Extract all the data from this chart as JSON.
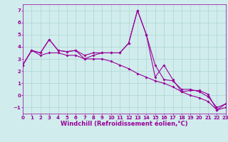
{
  "x": [
    0,
    1,
    2,
    3,
    4,
    5,
    6,
    7,
    8,
    9,
    10,
    11,
    12,
    13,
    14,
    15,
    16,
    17,
    18,
    19,
    20,
    21,
    22,
    23
  ],
  "y_line": [
    2.5,
    3.7,
    3.5,
    4.6,
    3.7,
    3.6,
    3.7,
    3.0,
    3.3,
    3.5,
    3.5,
    3.5,
    4.3,
    7.0,
    5.0,
    1.5,
    2.5,
    1.3,
    0.3,
    0.4,
    0.4,
    0.1,
    -1.2,
    -0.7
  ],
  "y_upper": [
    2.5,
    3.7,
    3.5,
    4.6,
    3.7,
    3.6,
    3.7,
    3.3,
    3.5,
    3.5,
    3.5,
    3.5,
    4.3,
    7.0,
    5.0,
    2.5,
    1.3,
    1.2,
    0.5,
    0.5,
    0.3,
    -0.1,
    -1.0,
    -0.7
  ],
  "y_lower": [
    2.5,
    3.7,
    3.3,
    3.5,
    3.5,
    3.3,
    3.3,
    3.0,
    3.0,
    3.0,
    2.8,
    2.5,
    2.2,
    1.8,
    1.5,
    1.2,
    1.0,
    0.7,
    0.3,
    0.0,
    -0.2,
    -0.5,
    -1.2,
    -1.0
  ],
  "line_color": "#990099",
  "bg_color": "#d0ecec",
  "grid_color": "#b0d4d4",
  "xlabel": "Windchill (Refroidissement éolien,°C)",
  "xlim": [
    0,
    23
  ],
  "ylim": [
    -1.5,
    7.5
  ],
  "xticks": [
    0,
    1,
    2,
    3,
    4,
    5,
    6,
    7,
    8,
    9,
    10,
    11,
    12,
    13,
    14,
    15,
    16,
    17,
    18,
    19,
    20,
    21,
    22,
    23
  ],
  "yticks": [
    -1,
    0,
    1,
    2,
    3,
    4,
    5,
    6,
    7
  ],
  "tick_fontsize": 5.0,
  "xlabel_fontsize": 6.0,
  "marker": "D",
  "marker_size": 2.0,
  "linewidth": 0.8
}
